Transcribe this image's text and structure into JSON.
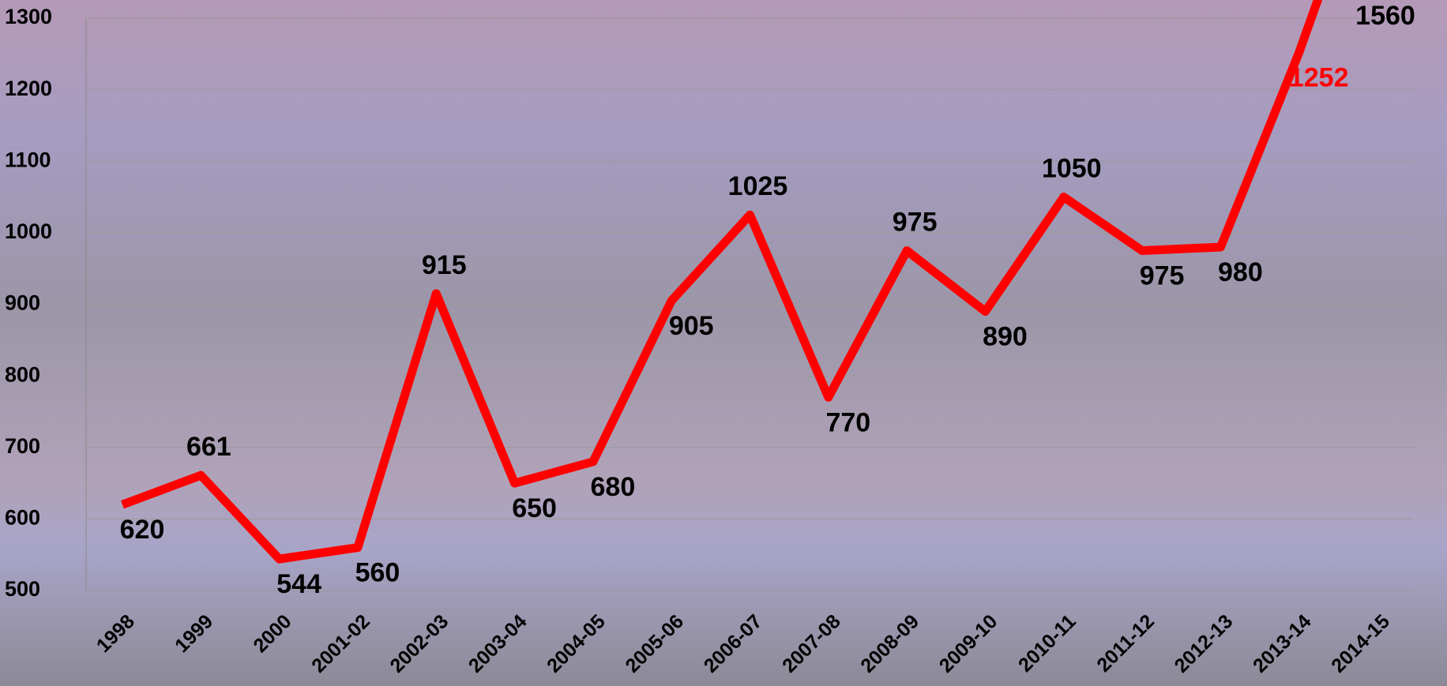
{
  "chart_data": {
    "type": "line",
    "categories": [
      "1998",
      "1999",
      "2000",
      "2001-02",
      "2002-03",
      "2003-04",
      "2004-05",
      "2005-06",
      "2006-07",
      "2007-08",
      "2008-09",
      "2009-10",
      "2010-11",
      "2011-12",
      "2012-13",
      "2013-14",
      "2014-15"
    ],
    "values": [
      620,
      661,
      544,
      560,
      915,
      650,
      680,
      905,
      1025,
      770,
      975,
      890,
      1050,
      975,
      980,
      1252,
      1560
    ],
    "color": "#ff0000",
    "label_colors": [
      "#000000",
      "#000000",
      "#000000",
      "#000000",
      "#000000",
      "#000000",
      "#000000",
      "#000000",
      "#000000",
      "#000000",
      "#000000",
      "#000000",
      "#000000",
      "#000000",
      "#000000",
      "#ff0000",
      "#000000"
    ],
    "ylim": [
      500,
      1300
    ],
    "yticks": [
      500,
      600,
      700,
      800,
      900,
      1000,
      1100,
      1200,
      1300
    ],
    "grid": true
  }
}
